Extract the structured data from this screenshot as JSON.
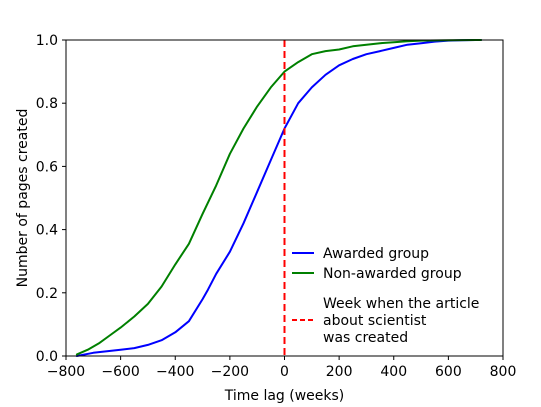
{
  "chart_data": {
    "type": "line",
    "title": "",
    "xlabel": "Time lag (weeks)",
    "ylabel": "Number of pages created",
    "xlim": [
      -800,
      800
    ],
    "ylim": [
      0.0,
      1.0
    ],
    "xticks": [
      -800,
      -600,
      -400,
      -200,
      0,
      200,
      400,
      600,
      800
    ],
    "xtick_labels": [
      "−800",
      "−600",
      "−400",
      "−200",
      "0",
      "200",
      "400",
      "600",
      "800"
    ],
    "yticks": [
      0.0,
      0.2,
      0.4,
      0.6,
      0.8,
      1.0
    ],
    "ytick_labels": [
      "0.0",
      "0.2",
      "0.4",
      "0.6",
      "0.8",
      "1.0"
    ],
    "grid": false,
    "legend_position": "bottom-right",
    "series": [
      {
        "name": "Awarded group",
        "color": "#0000ff",
        "x": [
          -760,
          -700,
          -650,
          -600,
          -550,
          -500,
          -450,
          -400,
          -350,
          -300,
          -280,
          -250,
          -200,
          -150,
          -100,
          -50,
          0,
          50,
          100,
          150,
          200,
          250,
          300,
          350,
          400,
          450,
          500,
          550,
          600,
          650,
          700,
          720
        ],
        "y": [
          0.0,
          0.01,
          0.015,
          0.02,
          0.025,
          0.035,
          0.05,
          0.075,
          0.11,
          0.18,
          0.21,
          0.26,
          0.33,
          0.42,
          0.52,
          0.62,
          0.72,
          0.8,
          0.85,
          0.89,
          0.92,
          0.94,
          0.955,
          0.965,
          0.975,
          0.985,
          0.99,
          0.995,
          0.998,
          0.999,
          1.0,
          1.0
        ]
      },
      {
        "name": "Non-awarded group",
        "color": "#008000",
        "x": [
          -760,
          -720,
          -680,
          -640,
          -600,
          -550,
          -500,
          -450,
          -400,
          -350,
          -300,
          -250,
          -200,
          -150,
          -100,
          -50,
          0,
          50,
          100,
          150,
          200,
          250,
          300,
          350,
          400,
          450,
          500,
          600,
          700,
          720
        ],
        "y": [
          0.005,
          0.02,
          0.04,
          0.065,
          0.09,
          0.125,
          0.165,
          0.22,
          0.29,
          0.355,
          0.45,
          0.54,
          0.64,
          0.72,
          0.79,
          0.85,
          0.9,
          0.93,
          0.955,
          0.965,
          0.97,
          0.98,
          0.985,
          0.99,
          0.993,
          0.996,
          0.998,
          0.999,
          1.0,
          1.0
        ]
      }
    ],
    "reference_line": {
      "x": 0,
      "color": "#ff0000",
      "style": "dashed",
      "label_lines": [
        "Week when the article",
        "about scientist",
        "was created"
      ]
    }
  }
}
